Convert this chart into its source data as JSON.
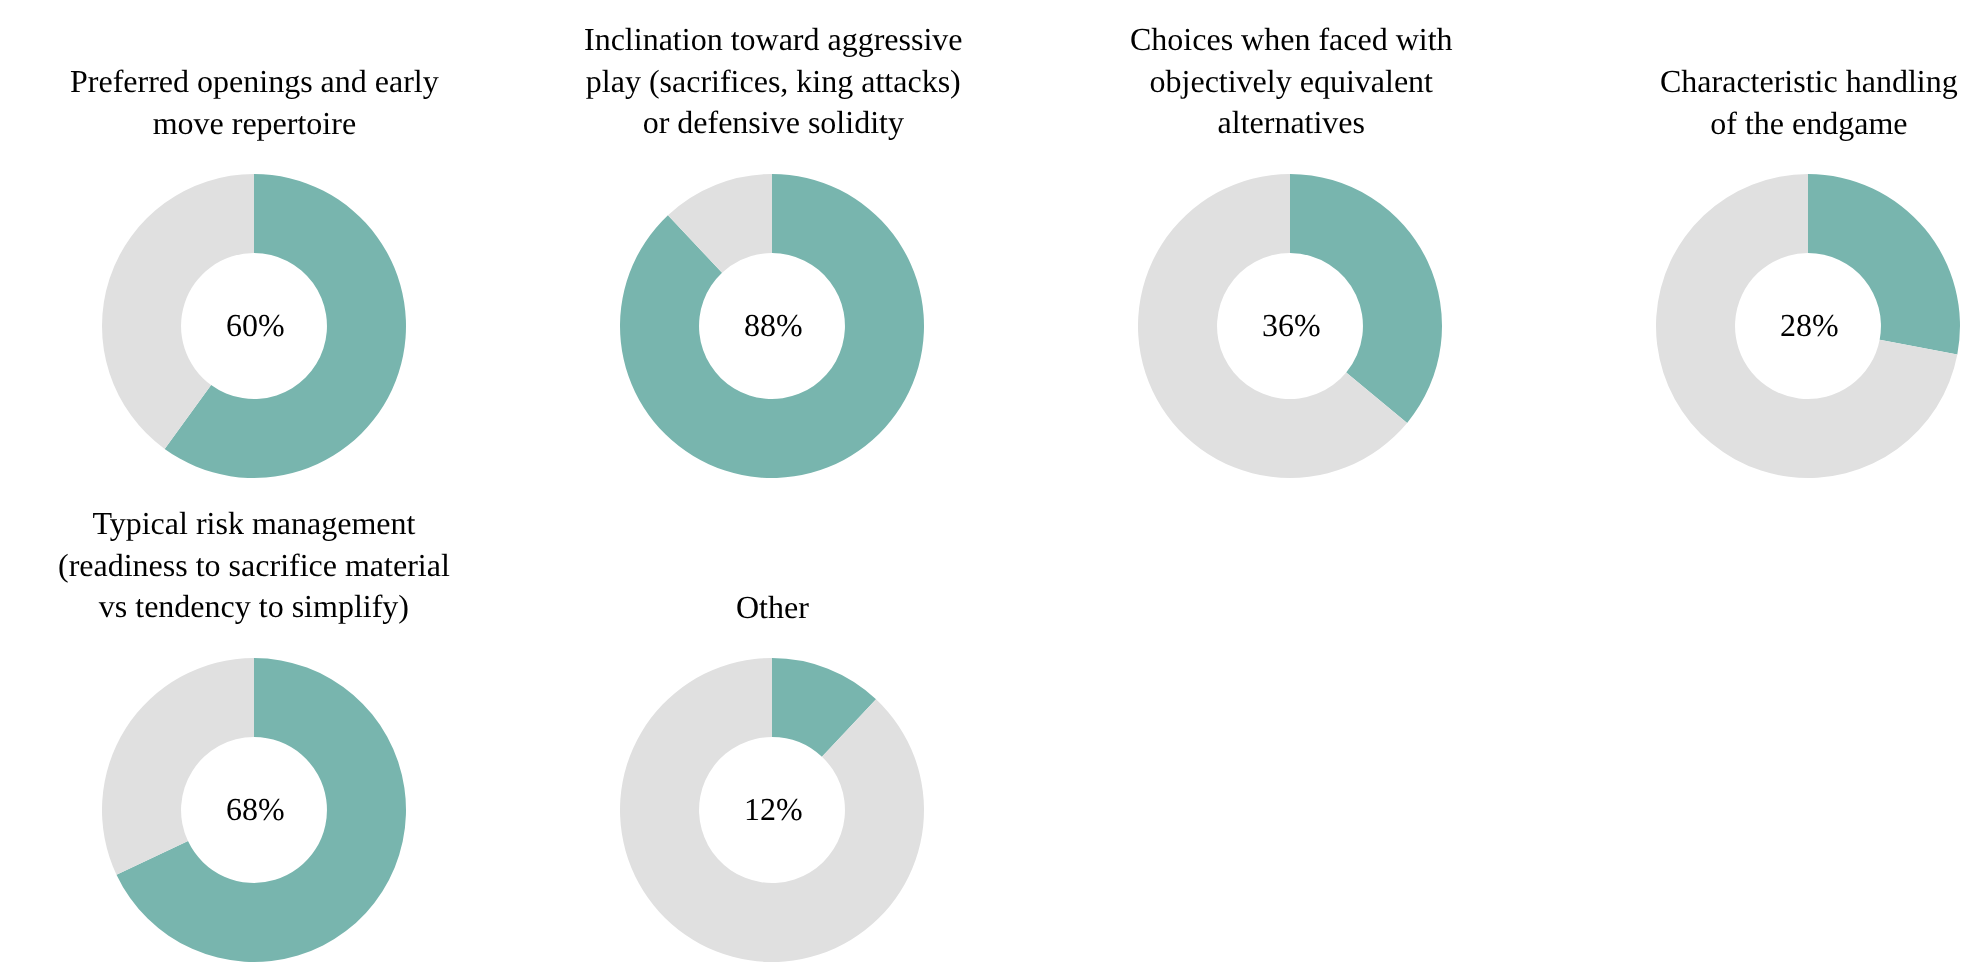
{
  "chart_data": [
    {
      "type": "donut",
      "title": "Preferred openings and early\nmove repertoire",
      "categories": [
        null,
        null
      ],
      "values": [
        60,
        40
      ],
      "colors": [
        "#78b5ae",
        "#e0e0e0"
      ],
      "annotations": [
        "60%"
      ]
    },
    {
      "type": "donut",
      "title": "Inclination toward aggressive\nplay (sacrifices, king attacks)\nor defensive solidity",
      "categories": [
        null,
        null
      ],
      "values": [
        88,
        12
      ],
      "colors": [
        "#78b5ae",
        "#e0e0e0"
      ],
      "annotations": [
        "88%"
      ]
    },
    {
      "type": "donut",
      "title": "Choices when faced with\nobjectively equivalent\nalternatives",
      "categories": [
        null,
        null
      ],
      "values": [
        36,
        64
      ],
      "colors": [
        "#78b5ae",
        "#e0e0e0"
      ],
      "annotations": [
        "36%"
      ]
    },
    {
      "type": "donut",
      "title": "Characteristic handling\nof the endgame",
      "categories": [
        null,
        null
      ],
      "values": [
        28,
        72
      ],
      "colors": [
        "#78b5ae",
        "#e0e0e0"
      ],
      "annotations": [
        "28%"
      ]
    },
    {
      "type": "donut",
      "title": "Typical risk management\n(readiness to sacrifice material\nvs tendency to simplify)",
      "categories": [
        null,
        null
      ],
      "values": [
        68,
        32
      ],
      "colors": [
        "#78b5ae",
        "#e0e0e0"
      ],
      "annotations": [
        "68%"
      ]
    },
    {
      "type": "donut",
      "title": "Other",
      "categories": [
        null,
        null
      ],
      "values": [
        12,
        88
      ],
      "colors": [
        "#78b5ae",
        "#e0e0e0"
      ],
      "annotations": [
        "12%"
      ]
    }
  ]
}
